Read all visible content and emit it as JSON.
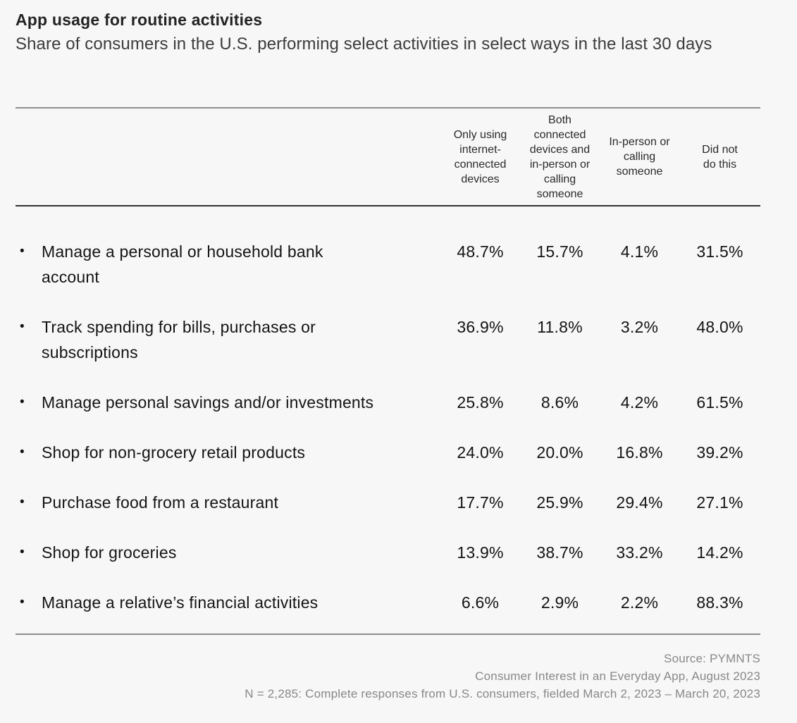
{
  "page": {
    "title": "App usage for routine activities",
    "subtitle": "Share of consumers in the U.S. performing select activities in select ways in the last 30 days"
  },
  "table": {
    "bullet": "•",
    "columns": [
      "Only using\ninternet-\nconnected\ndevices",
      "Both\nconnected\ndevices and\nin-person or\ncalling\nsomeone",
      "In-person or\ncalling\nsomeone",
      "Did not\ndo this"
    ],
    "rows": [
      {
        "activity": "Manage a personal or household bank\naccount",
        "values": [
          "48.7%",
          "15.7%",
          "4.1%",
          "31.5%"
        ]
      },
      {
        "activity": "Track spending for bills, purchases or\nsubscriptions",
        "values": [
          "36.9%",
          "11.8%",
          "3.2%",
          "48.0%"
        ]
      },
      {
        "activity": "Manage personal savings and/or investments",
        "values": [
          "25.8%",
          "8.6%",
          "4.2%",
          "61.5%"
        ]
      },
      {
        "activity": "Shop for non-grocery retail products",
        "values": [
          "24.0%",
          "20.0%",
          "16.8%",
          "39.2%"
        ]
      },
      {
        "activity": "Purchase food from a restaurant",
        "values": [
          "17.7%",
          "25.9%",
          "29.4%",
          "27.1%"
        ]
      },
      {
        "activity": "Shop for groceries",
        "values": [
          "13.9%",
          "38.7%",
          "33.2%",
          "14.2%"
        ]
      },
      {
        "activity": "Manage a relative’s financial activities",
        "values": [
          "6.6%",
          "2.9%",
          "2.2%",
          "88.3%"
        ]
      }
    ]
  },
  "footer": {
    "lines": [
      "Source: PYMNTS",
      "Consumer Interest in an Everyday App, August 2023",
      "N = 2,285: Complete responses from U.S. consumers, fielded March 2, 2023 – March 20, 2023"
    ]
  },
  "colors": {
    "background": "#f7f7f7",
    "title": "#232323",
    "subtitle": "#3c3c3c",
    "header-text": "#2a2a2a",
    "text": "#141414",
    "muted": "#88888a",
    "rule-light": "#8e8e8e",
    "rule-dark": "#303030"
  },
  "chart_data": {
    "type": "table",
    "title": "App usage for routine activities",
    "subtitle": "Share of consumers in the U.S. performing select activities in select ways in the last 30 days",
    "unit": "%",
    "categories": [
      "Manage a personal or household bank account",
      "Track spending for bills, purchases or subscriptions",
      "Manage personal savings and/or investments",
      "Shop for non-grocery retail products",
      "Purchase food from a restaurant",
      "Shop for groceries",
      "Manage a relative’s financial activities"
    ],
    "series": [
      {
        "name": "Only using internet-connected devices",
        "values": [
          48.7,
          36.9,
          25.8,
          24.0,
          17.7,
          13.9,
          6.6
        ]
      },
      {
        "name": "Both connected devices and in-person or calling someone",
        "values": [
          15.7,
          11.8,
          8.6,
          20.0,
          25.9,
          38.7,
          2.9
        ]
      },
      {
        "name": "In-person or calling someone",
        "values": [
          4.1,
          3.2,
          4.2,
          16.8,
          29.4,
          33.2,
          2.2
        ]
      },
      {
        "name": "Did not do this",
        "values": [
          31.5,
          48.0,
          61.5,
          39.2,
          27.1,
          14.2,
          88.3
        ]
      }
    ],
    "legend_position": "column headers",
    "grid": false,
    "source": "Source: PYMNTS — Consumer Interest in an Everyday App, August 2023 — N = 2,285: Complete responses from U.S. consumers, fielded March 2, 2023 – March 20, 2023"
  }
}
